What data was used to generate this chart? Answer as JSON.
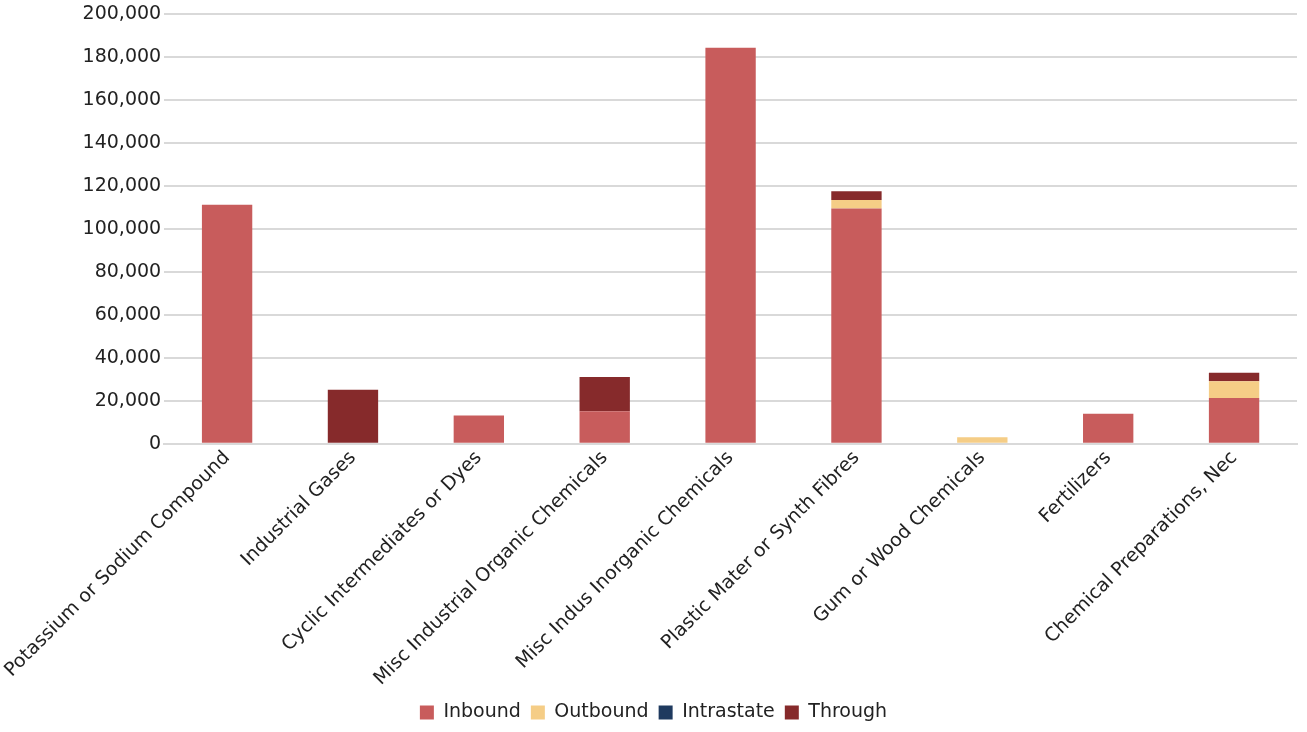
{
  "chart_data": {
    "type": "bar",
    "stacked": true,
    "categories": [
      "Potassium or Sodium Compound",
      "Industrial Gases",
      "Cyclic Intermediates or Dyes",
      "Misc Industrial Organic Chemicals",
      "Misc Indus Inorganic Chemicals",
      "Plastic Mater or Synth Fibres",
      "Gum or Wood Chemicals",
      "Fertilizers",
      "Chemical Preparations, Nec"
    ],
    "series": [
      {
        "name": "Inbound",
        "color": "#c85c5c",
        "values": [
          111300,
          0,
          13200,
          15100,
          184500,
          109600,
          0,
          14000,
          21300
        ]
      },
      {
        "name": "Outbound",
        "color": "#f5cd86",
        "values": [
          0,
          0,
          0,
          0,
          0,
          4000,
          3000,
          0,
          7800
        ]
      },
      {
        "name": "Intrastate",
        "color": "#1f3a5f",
        "values": [
          0,
          0,
          0,
          0,
          0,
          0,
          0,
          0,
          0
        ]
      },
      {
        "name": "Through",
        "color": "#862a2b",
        "values": [
          0,
          25200,
          0,
          16000,
          0,
          4000,
          0,
          0,
          4000
        ]
      }
    ],
    "ylim": [
      0,
      200000
    ],
    "yticks": [
      0,
      {
        "value": 20000,
        "label": "20,000"
      },
      {
        "value": 40000,
        "label": "40,000"
      },
      {
        "value": 60000,
        "label": "60,000"
      },
      {
        "value": 80000,
        "label": "80,000"
      },
      {
        "value": 100000,
        "label": "100,000"
      },
      {
        "value": 120000,
        "label": "120,000"
      },
      {
        "value": 140000,
        "label": "140,000"
      },
      {
        "value": 160000,
        "label": "160,000"
      },
      {
        "value": 180000,
        "label": "180,000"
      },
      {
        "value": 200000,
        "label": "200,000"
      }
    ],
    "grid": "y",
    "legend": "bottom"
  }
}
